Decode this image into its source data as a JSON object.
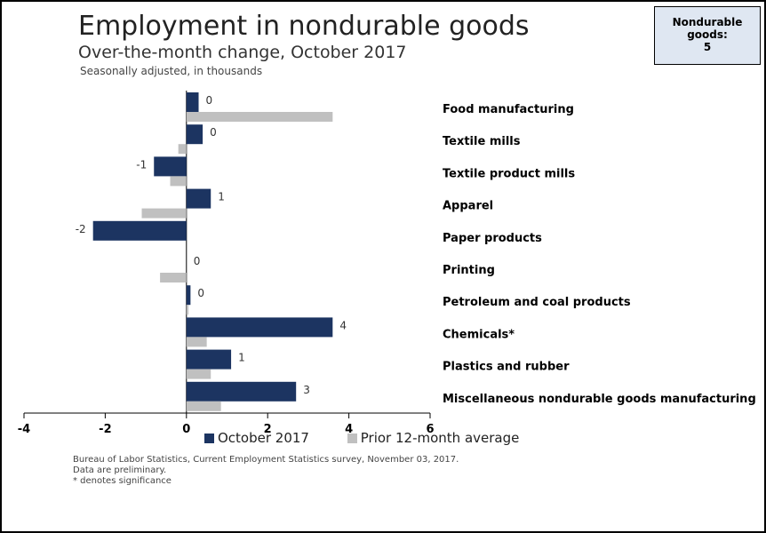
{
  "header": {
    "title": "Employment in nondurable goods",
    "subtitle": "Over-the-month change, October 2017",
    "note": "Seasonally adjusted, in thousands"
  },
  "callout": {
    "line1": "Nondurable",
    "line2": "goods:",
    "value": "5"
  },
  "legend": {
    "items": [
      {
        "label": "October 2017",
        "color": "#1c3461"
      },
      {
        "label": "Prior 12-month average",
        "color": "#c0c0c0"
      }
    ]
  },
  "footer": {
    "source": "Bureau of Labor Statistics, Current Employment Statistics survey, November 03, 2017.",
    "preliminary": "Data are preliminary.",
    "significance": "* denotes significance"
  },
  "chart_data": {
    "type": "bar",
    "orientation": "horizontal",
    "categories": [
      "Food manufacturing",
      "Textile mills",
      "Textile product mills",
      "Apparel",
      "Paper products",
      "Printing",
      "Petroleum and coal products",
      "Chemicals*",
      "Plastics and rubber",
      "Miscellaneous nondurable goods manufacturing"
    ],
    "series": [
      {
        "name": "October 2017",
        "color": "#1c3461",
        "values": [
          0.3,
          0.4,
          -0.8,
          0.6,
          -2.3,
          0.0,
          0.1,
          3.6,
          1.1,
          2.7
        ],
        "labels": [
          "0",
          "0",
          "-1",
          "1",
          "-2",
          "0",
          "0",
          "4",
          "1",
          "3"
        ]
      },
      {
        "name": "Prior 12-month average",
        "color": "#c0c0c0",
        "values": [
          3.6,
          -0.2,
          -0.4,
          -1.1,
          0.0,
          -0.65,
          0.05,
          0.5,
          0.6,
          0.85
        ]
      }
    ],
    "xlim": [
      -4,
      6
    ],
    "xticks": [
      "-4",
      "-2",
      "0",
      "2",
      "4",
      "6"
    ],
    "xtick_values": [
      -4,
      -2,
      0,
      2,
      4,
      6
    ],
    "legend_position": "bottom",
    "grid": false
  }
}
